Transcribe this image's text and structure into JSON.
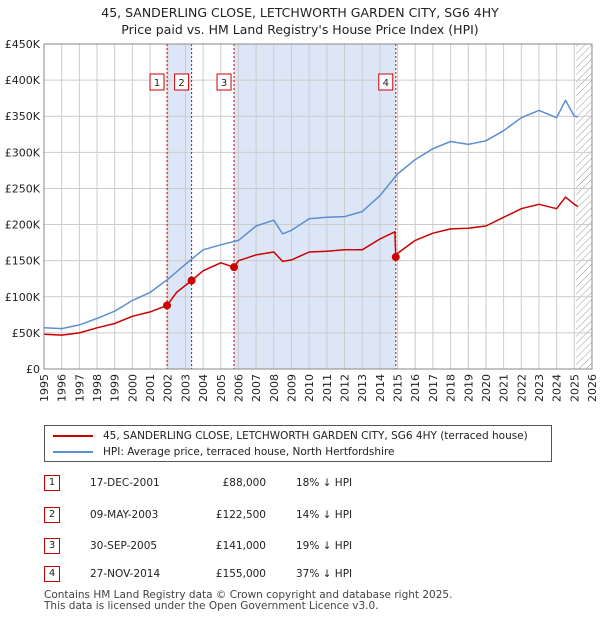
{
  "title_line1": "45, SANDERLING CLOSE, LETCHWORTH GARDEN CITY, SG6 4HY",
  "title_line2": "Price paid vs. HM Land Registry's House Price Index (HPI)",
  "colors": {
    "property": "#cc0000",
    "hpi": "#5b8fd0",
    "shade": "#dde6f6",
    "grid": "#cccccc"
  },
  "chart_data": {
    "type": "line",
    "title": "Price paid vs. HM Land Registry's House Price Index (HPI)",
    "xlabel": "",
    "ylabel": "",
    "xlim": [
      1995,
      2026
    ],
    "ylim": [
      0,
      450000
    ],
    "x_ticks": [
      "1995",
      "1996",
      "1997",
      "1998",
      "1999",
      "2000",
      "2001",
      "2002",
      "2003",
      "2004",
      "2005",
      "2006",
      "2007",
      "2008",
      "2009",
      "2010",
      "2011",
      "2012",
      "2013",
      "2014",
      "2015",
      "2016",
      "2017",
      "2018",
      "2019",
      "2020",
      "2021",
      "2022",
      "2023",
      "2024",
      "2025",
      "2026"
    ],
    "y_ticks": [
      {
        "v": 0,
        "label": "£0"
      },
      {
        "v": 50000,
        "label": "£50K"
      },
      {
        "v": 100000,
        "label": "£100K"
      },
      {
        "v": 150000,
        "label": "£150K"
      },
      {
        "v": 200000,
        "label": "£200K"
      },
      {
        "v": 250000,
        "label": "£250K"
      },
      {
        "v": 300000,
        "label": "£300K"
      },
      {
        "v": 350000,
        "label": "£350K"
      },
      {
        "v": 400000,
        "label": "£400K"
      },
      {
        "v": 450000,
        "label": "£450K"
      }
    ],
    "shaded_spans": [
      [
        2001.96,
        2003.35
      ],
      [
        2005.75,
        2014.9
      ]
    ],
    "future_hatch_from": 2025.1,
    "series": [
      {
        "name": "45, SANDERLING CLOSE, LETCHWORTH GARDEN CITY, SG6 4HY (terraced house)",
        "color": "#cc0000",
        "x": [
          1995,
          1996,
          1997,
          1998,
          1999,
          2000,
          2001,
          2001.96,
          2002.5,
          2003.35,
          2004,
          2005,
          2005.75,
          2006,
          2007,
          2008,
          2008.5,
          2009,
          2010,
          2011,
          2012,
          2013,
          2014,
          2014.85,
          2014.9,
          2015,
          2016,
          2017,
          2018,
          2019,
          2020,
          2021,
          2022,
          2023,
          2024,
          2024.5,
          2025,
          2025.2
        ],
        "y": [
          48000,
          47000,
          50000,
          57000,
          63000,
          73000,
          79000,
          88000,
          106000,
          122500,
          136000,
          147000,
          141000,
          150000,
          158000,
          162000,
          149000,
          151000,
          162000,
          163000,
          165000,
          165000,
          180000,
          190000,
          155000,
          160000,
          178000,
          188000,
          194000,
          195000,
          198000,
          210000,
          222000,
          228000,
          222000,
          238000,
          228000,
          225000
        ]
      },
      {
        "name": "HPI: Average price, terraced house, North Hertfordshire",
        "color": "#5b8fd0",
        "x": [
          1995,
          1996,
          1997,
          1998,
          1999,
          2000,
          2001,
          2002,
          2003,
          2004,
          2005,
          2006,
          2007,
          2008,
          2008.5,
          2009,
          2010,
          2011,
          2012,
          2013,
          2014,
          2015,
          2016,
          2017,
          2018,
          2019,
          2020,
          2021,
          2022,
          2023,
          2024,
          2024.5,
          2025,
          2025.2
        ],
        "y": [
          57000,
          56000,
          61000,
          70000,
          80000,
          95000,
          106000,
          124000,
          145000,
          165000,
          172000,
          178000,
          198000,
          206000,
          187000,
          192000,
          208000,
          210000,
          211000,
          218000,
          240000,
          270000,
          290000,
          305000,
          315000,
          311000,
          316000,
          330000,
          348000,
          358000,
          348000,
          372000,
          350000,
          349000
        ]
      }
    ],
    "transactions": [
      {
        "num": "1",
        "x": 2001.96,
        "y": 88000
      },
      {
        "num": "2",
        "x": 2003.35,
        "y": 122500
      },
      {
        "num": "3",
        "x": 2005.75,
        "y": 141000
      },
      {
        "num": "4",
        "x": 2014.9,
        "y": 155000
      }
    ]
  },
  "legend": {
    "property": "45, SANDERLING CLOSE, LETCHWORTH GARDEN CITY, SG6 4HY (terraced house)",
    "hpi": "HPI: Average price, terraced house, North Hertfordshire"
  },
  "table": [
    {
      "num": "1",
      "date": "17-DEC-2001",
      "price": "£88,000",
      "hpi": "18% ↓ HPI"
    },
    {
      "num": "2",
      "date": "09-MAY-2003",
      "price": "£122,500",
      "hpi": "14% ↓ HPI"
    },
    {
      "num": "3",
      "date": "30-SEP-2005",
      "price": "£141,000",
      "hpi": "19% ↓ HPI"
    },
    {
      "num": "4",
      "date": "27-NOV-2014",
      "price": "£155,000",
      "hpi": "37% ↓ HPI"
    }
  ],
  "footer_line1": "Contains HM Land Registry data © Crown copyright and database right 2025.",
  "footer_line2": "This data is licensed under the Open Government Licence v3.0."
}
